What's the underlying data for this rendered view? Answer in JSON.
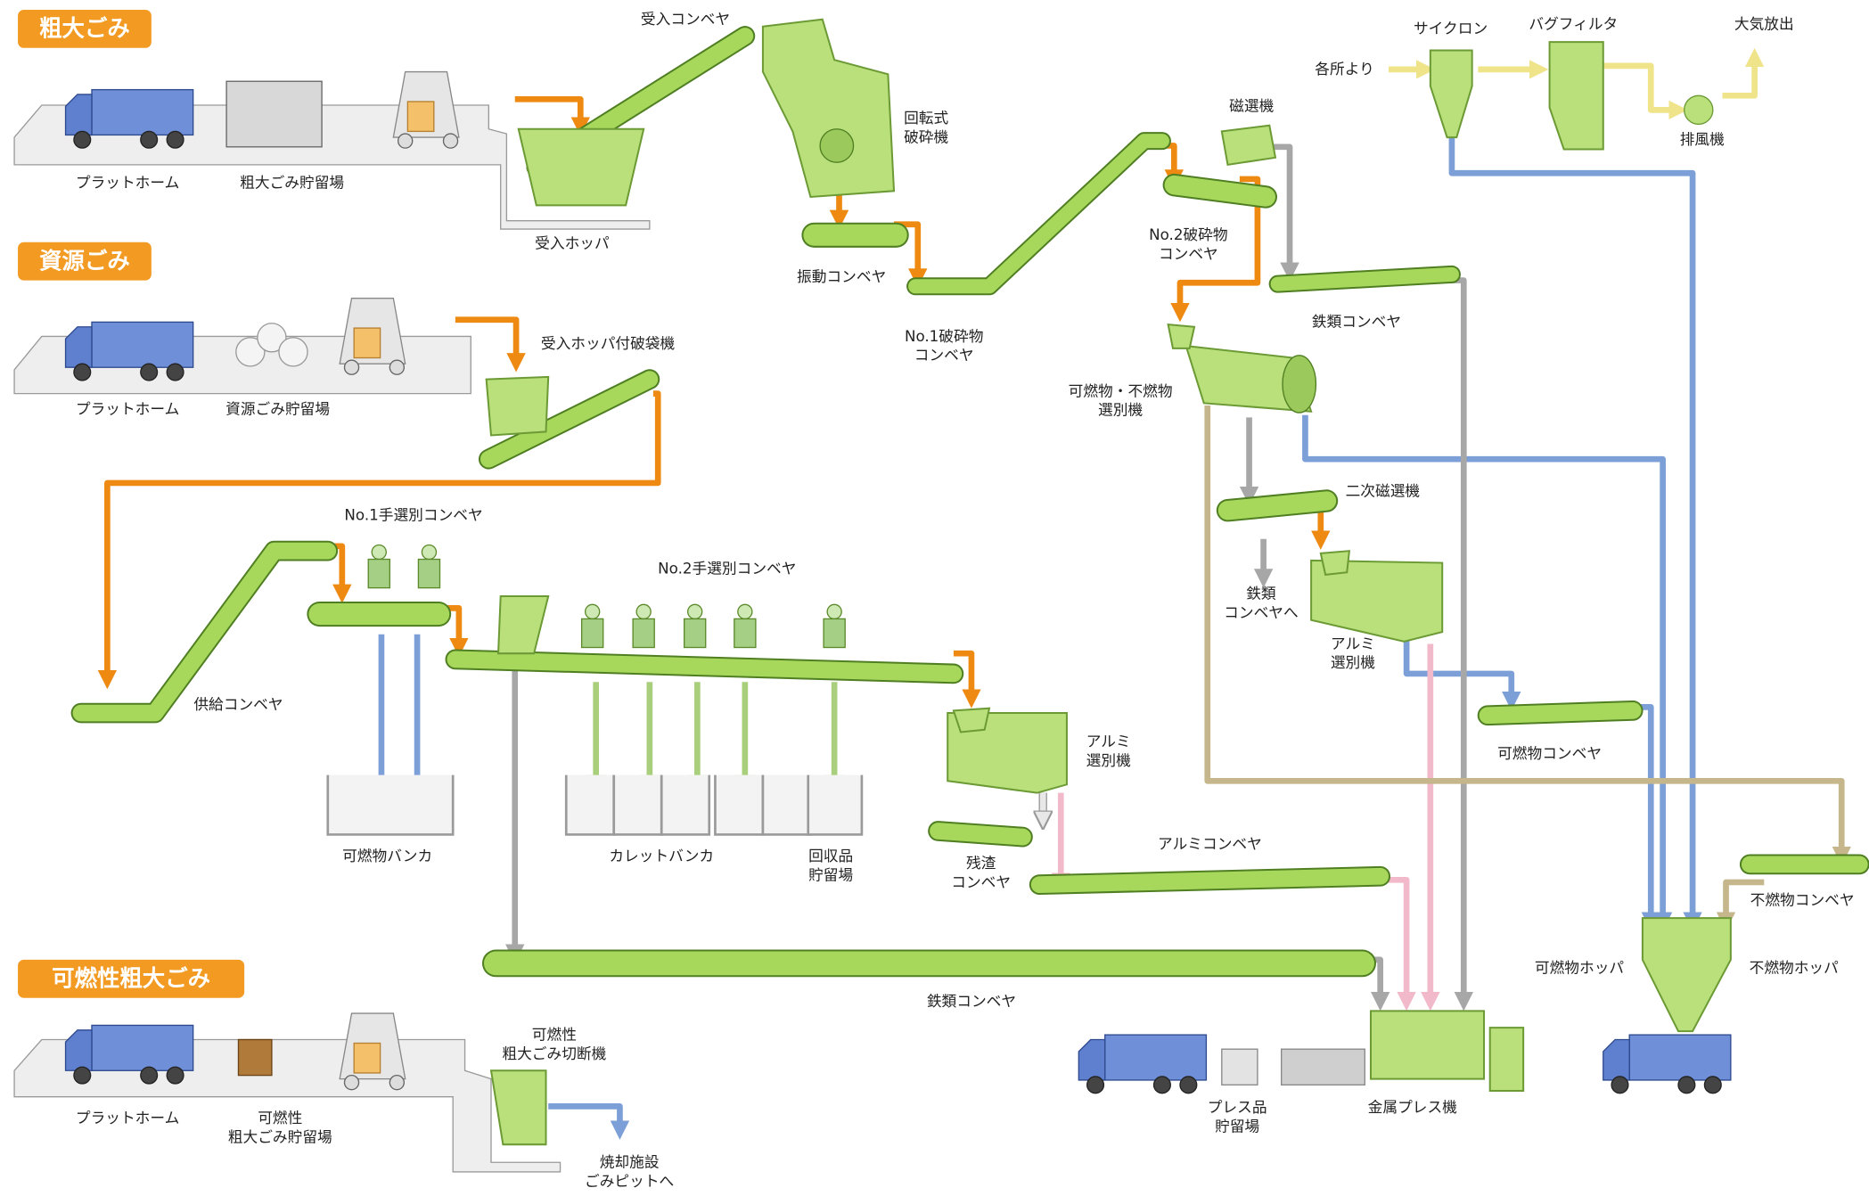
{
  "sections": [
    "粗大ごみ",
    "資源ごみ",
    "可燃性粗大ごみ"
  ],
  "labels": [
    {
      "lines": [
        "プラットホーム"
      ]
    },
    {
      "lines": [
        "粗大ごみ貯留場"
      ]
    },
    {
      "lines": [
        "受入コンベヤ"
      ]
    },
    {
      "lines": [
        "受入ホッパ"
      ]
    },
    {
      "lines": [
        "回転式",
        "破砕機"
      ]
    },
    {
      "lines": [
        "振動コンベヤ"
      ]
    },
    {
      "lines": [
        "No.1破砕物",
        "コンベヤ"
      ]
    },
    {
      "lines": [
        "磁選機"
      ]
    },
    {
      "lines": [
        "No.2破砕物",
        "コンベヤ"
      ]
    },
    {
      "lines": [
        "鉄類コンベヤ"
      ]
    },
    {
      "lines": [
        "サイクロン"
      ]
    },
    {
      "lines": [
        "バグフィルタ"
      ]
    },
    {
      "lines": [
        "大気放出"
      ]
    },
    {
      "lines": [
        "各所より"
      ]
    },
    {
      "lines": [
        "排風機"
      ]
    },
    {
      "lines": [
        "プラットホーム"
      ]
    },
    {
      "lines": [
        "資源ごみ貯留場"
      ]
    },
    {
      "lines": [
        "受入ホッパ付破袋機"
      ]
    },
    {
      "lines": [
        "可燃物・不燃物",
        "選別機"
      ]
    },
    {
      "lines": [
        "No.1手選別コンベヤ"
      ]
    },
    {
      "lines": [
        "No.2手選別コンベヤ"
      ]
    },
    {
      "lines": [
        "二次磁選機"
      ]
    },
    {
      "lines": [
        "鉄類",
        "コンベヤへ"
      ]
    },
    {
      "lines": [
        "アルミ",
        "選別機"
      ]
    },
    {
      "lines": [
        "供給コンベヤ"
      ]
    },
    {
      "lines": [
        "アルミ",
        "選別機"
      ]
    },
    {
      "lines": [
        "可燃物コンベヤ"
      ]
    },
    {
      "lines": [
        "可燃物バンカ"
      ]
    },
    {
      "lines": [
        "カレットバンカ"
      ]
    },
    {
      "lines": [
        "回収品",
        "貯留場"
      ]
    },
    {
      "lines": [
        "残渣",
        "コンベヤ"
      ]
    },
    {
      "lines": [
        "アルミコンベヤ"
      ]
    },
    {
      "lines": [
        "不燃物コンベヤ"
      ]
    },
    {
      "lines": [
        "可燃物ホッパ"
      ]
    },
    {
      "lines": [
        "不燃物ホッパ"
      ]
    },
    {
      "lines": [
        "鉄類コンベヤ"
      ]
    },
    {
      "lines": [
        "可燃性",
        "粗大ごみ切断機"
      ]
    },
    {
      "lines": [
        "プラットホーム"
      ]
    },
    {
      "lines": [
        "可燃性",
        "粗大ごみ貯留場"
      ]
    },
    {
      "lines": [
        "プレス品",
        "貯留場"
      ]
    },
    {
      "lines": [
        "金属プレス機"
      ]
    },
    {
      "lines": [
        "焼却施設",
        "ごみピットへ"
      ]
    }
  ]
}
